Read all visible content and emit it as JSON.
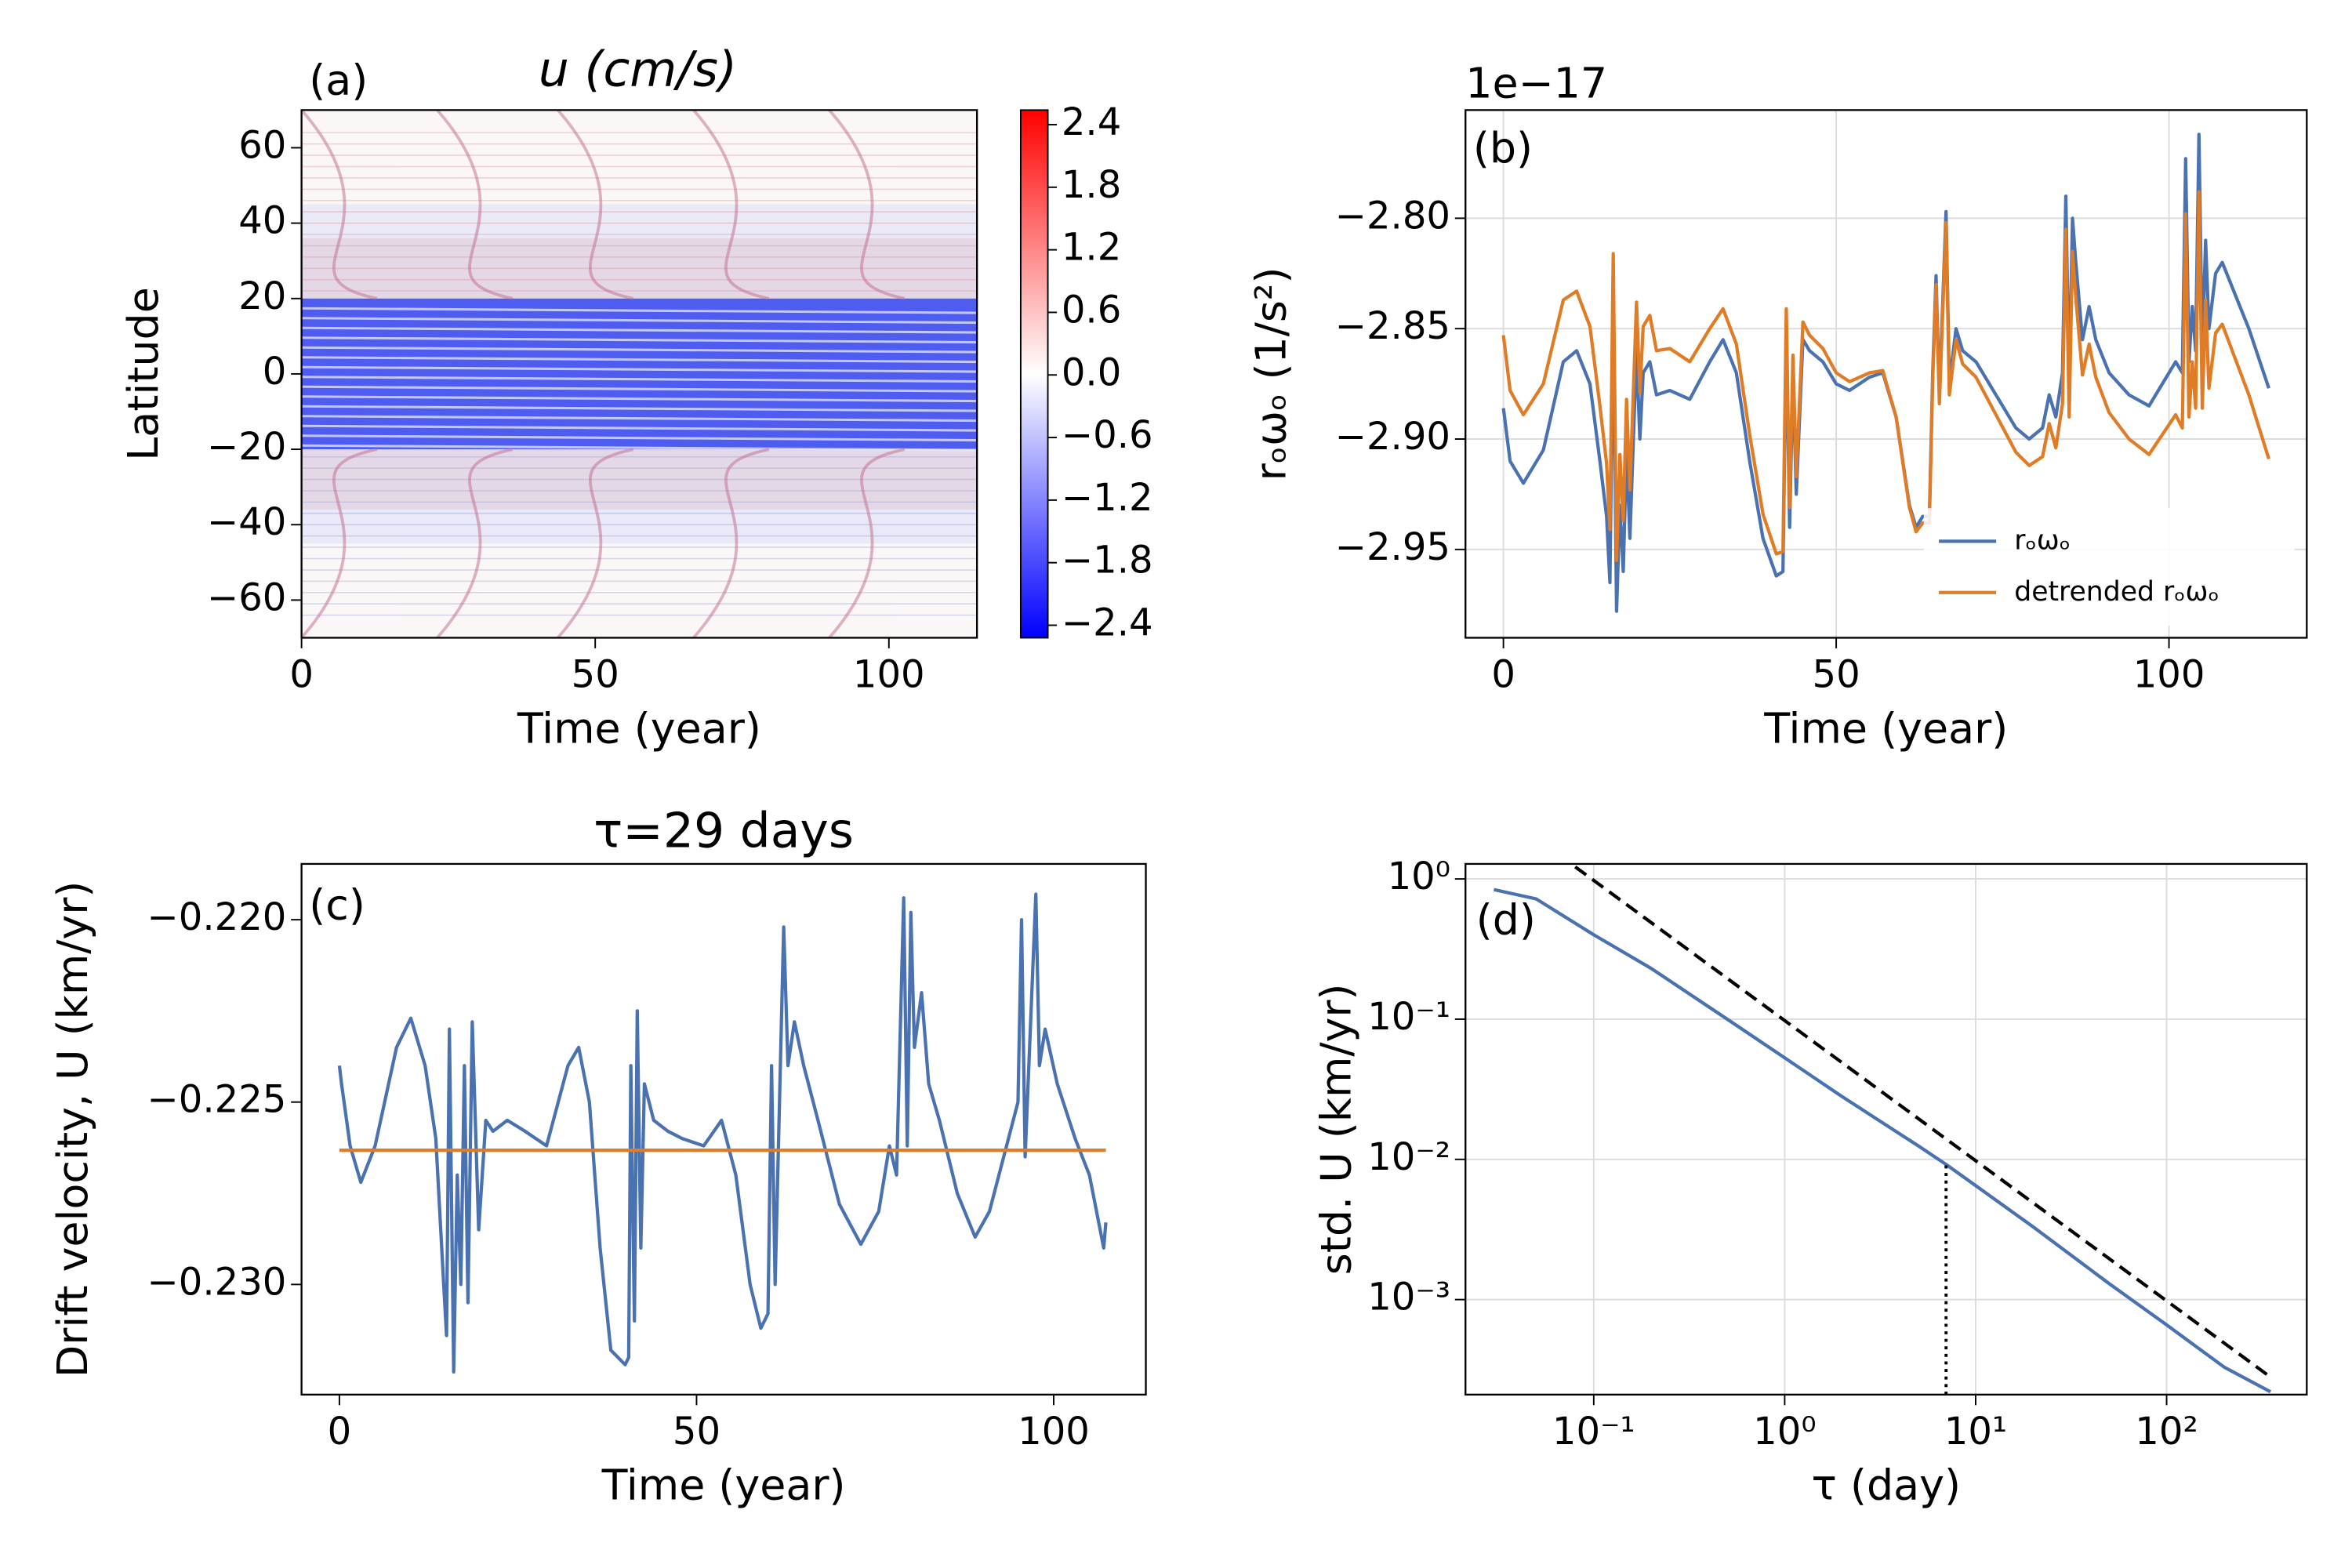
{
  "chart_data": [
    {
      "type": "heatmap",
      "title": "u (cm/s)",
      "panel_label": "(a)",
      "xlabel": "Time (year)",
      "ylabel": "Latitude",
      "xlim": [
        0,
        115
      ],
      "ylim": [
        -70,
        70
      ],
      "xticks": [
        0,
        50,
        100
      ],
      "yticks": [
        {
          "value": -60,
          "label": "−60"
        },
        {
          "value": -40,
          "label": "−40"
        },
        {
          "value": -20,
          "label": "−20"
        },
        0,
        20,
        40,
        60
      ],
      "colorbar": {
        "lim": [
          -2.52,
          2.54
        ],
        "colormap": "bwr",
        "ticks": [
          {
            "value": -2.4,
            "label": "−2.4"
          },
          {
            "value": -1.8,
            "label": "−1.8"
          },
          {
            "value": -1.2,
            "label": "−1.2"
          },
          {
            "value": -0.6,
            "label": "−0.6"
          },
          {
            "value": 0,
            "label": "0.0"
          },
          0.6,
          1.2,
          1.8,
          2.4
        ]
      },
      "grid": false
    },
    {
      "type": "line",
      "panel_label": "(b)",
      "offset_text": "1e−17",
      "xlabel": "Time (year)",
      "ylabel": "rₒωₒ (1/s²)",
      "xlim": [
        -5.7,
        120.7
      ],
      "ylim": [
        -2.99,
        -2.751
      ],
      "xticks": [
        0,
        50,
        100
      ],
      "yticks": [
        {
          "value": -2.95,
          "label": "−2.95"
        },
        {
          "value": -2.9,
          "label": "−2.90"
        },
        {
          "value": -2.85,
          "label": "−2.85"
        },
        {
          "value": -2.8,
          "label": "−2.80"
        }
      ],
      "grid": true,
      "legend": "lower right",
      "series": [
        {
          "name": "rₒωₒ",
          "color": "#4a72b0",
          "x": [
            0,
            1,
            3,
            6,
            9,
            11,
            13,
            14.5,
            15.5,
            16,
            16.5,
            17,
            17.5,
            18,
            18.5,
            19,
            20,
            20.5,
            21,
            22,
            23,
            25,
            28,
            31,
            33,
            35,
            37,
            39,
            41,
            42,
            42.5,
            43,
            43.5,
            44,
            45,
            46,
            48,
            50,
            52,
            55,
            57,
            59,
            61,
            62,
            63,
            64,
            64.5,
            65,
            65.5,
            66.5,
            67,
            68,
            69,
            71,
            74,
            77,
            79,
            81,
            82,
            83,
            84,
            84.5,
            85,
            85.5,
            86,
            87,
            88,
            89,
            91,
            94,
            97,
            99,
            101,
            102,
            102.5,
            103,
            103.5,
            104,
            104.5,
            105,
            105.5,
            106,
            107,
            108,
            110,
            112,
            115
          ],
          "values": [
            -2.886,
            -2.91,
            -2.92,
            -2.905,
            -2.865,
            -2.86,
            -2.875,
            -2.91,
            -2.935,
            -2.965,
            -2.84,
            -2.978,
            -2.93,
            -2.96,
            -2.905,
            -2.945,
            -2.86,
            -2.9,
            -2.87,
            -2.865,
            -2.88,
            -2.878,
            -2.882,
            -2.865,
            -2.855,
            -2.87,
            -2.91,
            -2.945,
            -2.962,
            -2.96,
            -2.85,
            -2.94,
            -2.87,
            -2.925,
            -2.855,
            -2.86,
            -2.865,
            -2.875,
            -2.878,
            -2.872,
            -2.87,
            -2.89,
            -2.93,
            -2.94,
            -2.935,
            -2.935,
            -2.87,
            -2.826,
            -2.88,
            -2.797,
            -2.875,
            -2.85,
            -2.86,
            -2.865,
            -2.88,
            -2.895,
            -2.9,
            -2.895,
            -2.88,
            -2.89,
            -2.87,
            -2.79,
            -2.875,
            -2.8,
            -2.82,
            -2.855,
            -2.84,
            -2.855,
            -2.87,
            -2.88,
            -2.885,
            -2.875,
            -2.865,
            -2.87,
            -2.773,
            -2.865,
            -2.84,
            -2.86,
            -2.762,
            -2.86,
            -2.81,
            -2.85,
            -2.825,
            -2.82,
            -2.835,
            -2.85,
            -2.877
          ]
        },
        {
          "name": "detrended rₒωₒ",
          "color": "#e07b26",
          "x": [
            0,
            1,
            3,
            6,
            9,
            11,
            13,
            14.5,
            15.5,
            16,
            16.5,
            17,
            17.5,
            18,
            18.5,
            19,
            20,
            20.5,
            21,
            22,
            23,
            25,
            28,
            31,
            33,
            35,
            37,
            39,
            41,
            42,
            42.5,
            43,
            43.5,
            44,
            45,
            46,
            48,
            50,
            52,
            55,
            57,
            59,
            61,
            62,
            63,
            64,
            64.5,
            65,
            65.5,
            66.5,
            67,
            68,
            69,
            71,
            74,
            77,
            79,
            81,
            82,
            83,
            84,
            84.5,
            85,
            85.5,
            86,
            87,
            88,
            89,
            91,
            94,
            97,
            99,
            101,
            102,
            102.5,
            103,
            103.5,
            104,
            104.5,
            105,
            105.5,
            106,
            107,
            108,
            110,
            112,
            115
          ],
          "values": [
            -2.853,
            -2.878,
            -2.889,
            -2.875,
            -2.837,
            -2.833,
            -2.849,
            -2.885,
            -2.911,
            -2.941,
            -2.816,
            -2.955,
            -2.907,
            -2.937,
            -2.882,
            -2.923,
            -2.838,
            -2.879,
            -2.849,
            -2.844,
            -2.86,
            -2.859,
            -2.865,
            -2.85,
            -2.841,
            -2.857,
            -2.898,
            -2.934,
            -2.952,
            -2.951,
            -2.841,
            -2.931,
            -2.862,
            -2.917,
            -2.847,
            -2.853,
            -2.859,
            -2.87,
            -2.874,
            -2.87,
            -2.869,
            -2.89,
            -2.931,
            -2.942,
            -2.938,
            -2.938,
            -2.873,
            -2.83,
            -2.884,
            -2.802,
            -2.88,
            -2.855,
            -2.866,
            -2.872,
            -2.889,
            -2.906,
            -2.912,
            -2.908,
            -2.893,
            -2.904,
            -2.884,
            -2.805,
            -2.89,
            -2.815,
            -2.836,
            -2.871,
            -2.857,
            -2.872,
            -2.888,
            -2.9,
            -2.907,
            -2.898,
            -2.889,
            -2.895,
            -2.798,
            -2.89,
            -2.865,
            -2.886,
            -2.788,
            -2.886,
            -2.837,
            -2.877,
            -2.852,
            -2.848,
            -2.864,
            -2.88,
            -2.909
          ]
        }
      ]
    },
    {
      "type": "line",
      "title": "τ=29 days",
      "panel_label": "(c)",
      "xlabel": "Time (year)",
      "ylabel": "Drift velocity, U (km/yr)",
      "xlim": [
        -5.3,
        112.9
      ],
      "ylim": [
        -0.23302,
        -0.21847
      ],
      "xticks": [
        0,
        50,
        100
      ],
      "yticks": [
        {
          "value": -0.23,
          "label": "−0.230"
        },
        {
          "value": -0.225,
          "label": "−0.225"
        },
        {
          "value": -0.22,
          "label": "−0.220"
        }
      ],
      "grid": false,
      "series": [
        {
          "color": "#4a72b0",
          "x": [
            0,
            0.3,
            1.5,
            3,
            5,
            8,
            10,
            12,
            13.5,
            14.6,
            15,
            15.4,
            16,
            16.5,
            17,
            17.5,
            18,
            18.6,
            19.5,
            20.5,
            21.5,
            23.5,
            26,
            29,
            32,
            33.5,
            35,
            36.5,
            38,
            40,
            40.5,
            40.8,
            41.3,
            41.7,
            42.2,
            42.7,
            44,
            46,
            48,
            51,
            53.5,
            55.5,
            57.5,
            59,
            60,
            60.5,
            61,
            62.2,
            62.8,
            63.7,
            65,
            67,
            70,
            73,
            75.5,
            77,
            78,
            79,
            79.5,
            80,
            80.5,
            81.5,
            82.5,
            84,
            86.5,
            89,
            91,
            93,
            95,
            95.5,
            96,
            97.5,
            98,
            98.8,
            100.5,
            103,
            105,
            106.5,
            107,
            107.3
          ],
          "values": [
            -0.224,
            -0.2245,
            -0.2262,
            -0.2272,
            -0.2262,
            -0.2235,
            -0.2227,
            -0.224,
            -0.226,
            -0.23,
            -0.2314,
            -0.223,
            -0.2324,
            -0.227,
            -0.23,
            -0.224,
            -0.2305,
            -0.2228,
            -0.2285,
            -0.2255,
            -0.2258,
            -0.2255,
            -0.2258,
            -0.2262,
            -0.224,
            -0.2235,
            -0.225,
            -0.229,
            -0.2318,
            -0.2322,
            -0.232,
            -0.224,
            -0.231,
            -0.2225,
            -0.229,
            -0.2245,
            -0.2255,
            -0.2258,
            -0.226,
            -0.2262,
            -0.2255,
            -0.227,
            -0.23,
            -0.2312,
            -0.2308,
            -0.224,
            -0.23,
            -0.2202,
            -0.224,
            -0.2228,
            -0.224,
            -0.2255,
            -0.2278,
            -0.2289,
            -0.228,
            -0.2262,
            -0.227,
            -0.2194,
            -0.2262,
            -0.2198,
            -0.2235,
            -0.222,
            -0.2245,
            -0.2255,
            -0.2275,
            -0.2287,
            -0.228,
            -0.2265,
            -0.225,
            -0.22,
            -0.2265,
            -0.2193,
            -0.224,
            -0.223,
            -0.2245,
            -0.226,
            -0.227,
            -0.2285,
            -0.229,
            -0.2283
          ]
        },
        {
          "color": "#e07b26",
          "x": [
            0,
            107.3
          ],
          "values": [
            -0.22632,
            -0.22632
          ]
        }
      ]
    },
    {
      "type": "line",
      "panel_label": "(d)",
      "xscale": "log",
      "yscale": "log",
      "xlabel": "τ (day)",
      "ylabel": "std. U (km/yr)",
      "xlim": [
        0.0213,
        542
      ],
      "ylim": [
        0.00021,
        1.28
      ],
      "xticks": [
        {
          "value": 0.1,
          "label": "10⁻¹"
        },
        {
          "value": 1,
          "label": "10⁰"
        },
        {
          "value": 10,
          "label": "10¹"
        },
        {
          "value": 100,
          "label": "10²"
        }
      ],
      "yticks": [
        {
          "value": 0.001,
          "label": "10⁻³"
        },
        {
          "value": 0.01,
          "label": "10⁻²"
        },
        {
          "value": 0.1,
          "label": "10⁻¹"
        },
        {
          "value": 1,
          "label": "10⁰"
        }
      ],
      "grid": true,
      "series": [
        {
          "color": "#4a72b0",
          "x": [
            0.03,
            0.05,
            0.1,
            0.2,
            0.5,
            1,
            2,
            5,
            7,
            10,
            20,
            50,
            100,
            200,
            350
          ],
          "values": [
            0.84,
            0.72,
            0.4,
            0.23,
            0.1,
            0.053,
            0.028,
            0.0125,
            0.0092,
            0.0065,
            0.0033,
            0.0013,
            0.00066,
            0.00033,
            0.00022
          ]
        },
        {
          "color": "#000000",
          "linestyle": "dashed",
          "x": [
            0.08,
            344
          ],
          "values": [
            1.22,
            0.000285
          ]
        }
      ],
      "vline": {
        "x": 7,
        "y": 0.0092,
        "linestyle": "dotted",
        "color": "#000000"
      }
    }
  ]
}
